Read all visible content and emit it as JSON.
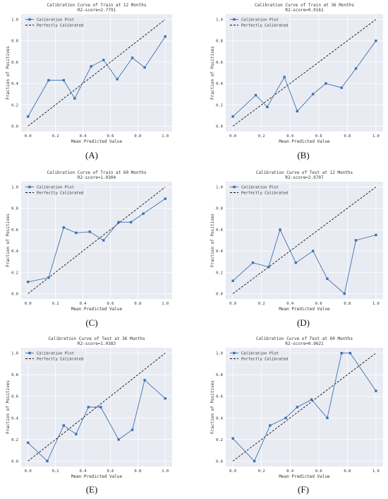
{
  "legend": {
    "plot_label": "Calibration Plot",
    "ideal_label": "Perfectly Calibrated"
  },
  "colors": {
    "plot": "#3a72b0",
    "ideal": "#111111",
    "background": "#e9ebf3",
    "grid": "#ffffff"
  },
  "chart_data": [
    {
      "type": "line",
      "letter": "(A)",
      "title": "Calibration Curve of Train at 12 Months",
      "subtitle": "R2-score=2.7791",
      "xlabel": "Mean Predicted Value",
      "ylabel": "Fraction of Positives",
      "xlim": [
        0,
        1
      ],
      "ylim": [
        0,
        1
      ],
      "xticks": [
        "0.0",
        "0.2",
        "0.4",
        "0.6",
        "0.8",
        "1.0"
      ],
      "yticks": [
        "0.0",
        "0.2",
        "0.4",
        "0.6",
        "0.8",
        "1.0"
      ],
      "grid": true,
      "legend_position": "top-left",
      "series": [
        {
          "name": "Calibration Plot",
          "x": [
            0.0,
            0.15,
            0.26,
            0.34,
            0.46,
            0.55,
            0.65,
            0.76,
            0.85,
            1.0
          ],
          "y": [
            0.09,
            0.43,
            0.43,
            0.26,
            0.56,
            0.62,
            0.44,
            0.64,
            0.55,
            0.84
          ]
        },
        {
          "name": "Perfectly Calibrated",
          "x": [
            0,
            1
          ],
          "y": [
            0,
            1
          ]
        }
      ]
    },
    {
      "type": "line",
      "letter": "(B)",
      "title": "Calibration Curve of Train at 36 Months",
      "subtitle": "R2-score=0.9161",
      "xlabel": "Mean Predicted Value",
      "ylabel": "Fraction of Positives",
      "xlim": [
        0,
        1
      ],
      "ylim": [
        0,
        1
      ],
      "xticks": [
        "0.0",
        "0.2",
        "0.4",
        "0.6",
        "0.8",
        "1.0"
      ],
      "yticks": [
        "0.0",
        "0.2",
        "0.4",
        "0.6",
        "0.8",
        "1.0"
      ],
      "grid": true,
      "legend_position": "top-left",
      "series": [
        {
          "name": "Calibration Plot",
          "x": [
            0.0,
            0.16,
            0.24,
            0.36,
            0.45,
            0.56,
            0.65,
            0.76,
            0.86,
            1.0
          ],
          "y": [
            0.09,
            0.29,
            0.18,
            0.46,
            0.14,
            0.3,
            0.4,
            0.36,
            0.54,
            0.8
          ]
        },
        {
          "name": "Perfectly Calibrated",
          "x": [
            0,
            1
          ],
          "y": [
            0,
            1
          ]
        }
      ]
    },
    {
      "type": "line",
      "letter": "(C)",
      "title": "Calibration Curve of Train at 60 Months",
      "subtitle": "R2-score=1.0304",
      "xlabel": "Mean Predicted Value",
      "ylabel": "Fraction of Positives",
      "xlim": [
        0,
        1
      ],
      "ylim": [
        0,
        1
      ],
      "xticks": [
        "0.0",
        "0.2",
        "0.4",
        "0.6",
        "0.8",
        "1.0"
      ],
      "yticks": [
        "0.0",
        "0.2",
        "0.4",
        "0.6",
        "0.8",
        "1.0"
      ],
      "grid": true,
      "legend_position": "top-left",
      "series": [
        {
          "name": "Calibration Plot",
          "x": [
            0.0,
            0.15,
            0.26,
            0.35,
            0.45,
            0.55,
            0.66,
            0.75,
            0.84,
            1.0
          ],
          "y": [
            0.11,
            0.15,
            0.62,
            0.57,
            0.58,
            0.5,
            0.67,
            0.67,
            0.75,
            0.89
          ]
        },
        {
          "name": "Perfectly Calibrated",
          "x": [
            0,
            1
          ],
          "y": [
            0,
            1
          ]
        }
      ]
    },
    {
      "type": "line",
      "letter": "(D)",
      "title": "Calibration Curve of Test at 12 Months",
      "subtitle": "R2-score=2.9707",
      "xlabel": "Mean Predicted Value",
      "ylabel": "Fraction of Positives",
      "xlim": [
        0,
        1
      ],
      "ylim": [
        0,
        1
      ],
      "xticks": [
        "0.0",
        "0.2",
        "0.4",
        "0.6",
        "0.8",
        "1.0"
      ],
      "yticks": [
        "0.0",
        "0.2",
        "0.4",
        "0.6",
        "0.8",
        "1.0"
      ],
      "grid": true,
      "legend_position": "top-left",
      "series": [
        {
          "name": "Calibration Plot",
          "x": [
            0.0,
            0.14,
            0.25,
            0.33,
            0.44,
            0.56,
            0.66,
            0.78,
            0.86,
            1.0
          ],
          "y": [
            0.12,
            0.29,
            0.25,
            0.6,
            0.29,
            0.4,
            0.14,
            0.0,
            0.5,
            0.55
          ]
        },
        {
          "name": "Perfectly Calibrated",
          "x": [
            0,
            1
          ],
          "y": [
            0,
            1
          ]
        }
      ]
    },
    {
      "type": "line",
      "letter": "(E)",
      "title": "Calibration Curve of Test at 36 Months",
      "subtitle": "R2-score=1.0383",
      "xlabel": "Mean Predicted Value",
      "ylabel": "Fraction of Positives",
      "xlim": [
        0,
        1
      ],
      "ylim": [
        0,
        1
      ],
      "xticks": [
        "0.0",
        "0.2",
        "0.4",
        "0.6",
        "0.8",
        "1.0"
      ],
      "yticks": [
        "0.0",
        "0.2",
        "0.4",
        "0.6",
        "0.8",
        "1.0"
      ],
      "grid": true,
      "legend_position": "top-left",
      "series": [
        {
          "name": "Calibration Plot",
          "x": [
            0.0,
            0.14,
            0.26,
            0.35,
            0.44,
            0.53,
            0.66,
            0.76,
            0.85,
            1.0
          ],
          "y": [
            0.17,
            0.0,
            0.33,
            0.25,
            0.5,
            0.5,
            0.2,
            0.29,
            0.75,
            0.58
          ]
        },
        {
          "name": "Perfectly Calibrated",
          "x": [
            0,
            1
          ],
          "y": [
            0,
            1
          ]
        }
      ]
    },
    {
      "type": "line",
      "letter": "(F)",
      "title": "Calibration Curve of Test at 60 Months",
      "subtitle": "R2-score=0.9621",
      "xlabel": "Mean Predicted Value",
      "ylabel": "Fraction of Positives",
      "xlim": [
        0,
        1
      ],
      "ylim": [
        0,
        1
      ],
      "xticks": [
        "0.0",
        "0.2",
        "0.4",
        "0.6",
        "0.8",
        "1.0"
      ],
      "yticks": [
        "0.0",
        "0.2",
        "0.4",
        "0.6",
        "0.8",
        "1.0"
      ],
      "grid": true,
      "legend_position": "top-left",
      "series": [
        {
          "name": "Calibration Plot",
          "x": [
            0.0,
            0.15,
            0.26,
            0.37,
            0.45,
            0.55,
            0.66,
            0.76,
            0.82,
            1.0
          ],
          "y": [
            0.21,
            0.0,
            0.33,
            0.4,
            0.5,
            0.57,
            0.4,
            1.0,
            1.0,
            0.65
          ]
        },
        {
          "name": "Perfectly Calibrated",
          "x": [
            0,
            1
          ],
          "y": [
            0,
            1
          ]
        }
      ]
    }
  ]
}
